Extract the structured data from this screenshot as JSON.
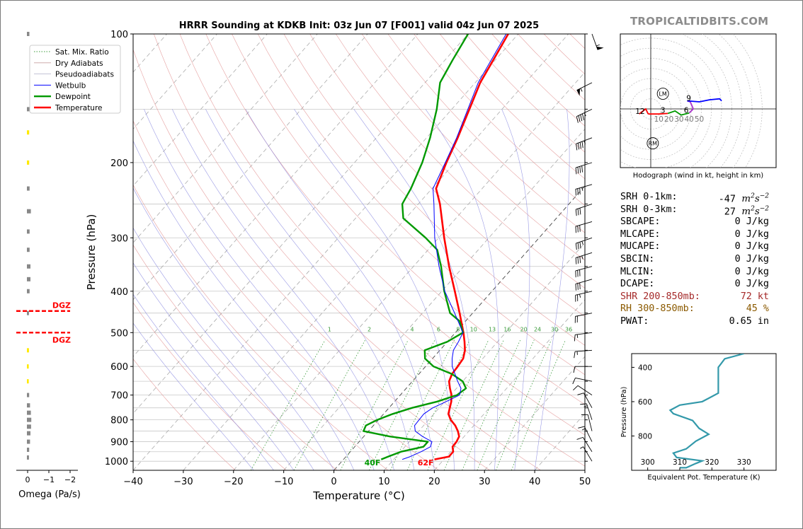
{
  "title": "HRRR Sounding at KDKB Init: 03z Jun 07 [F001] valid 04z Jun 07 2025",
  "brand": "TROPICALTIDBITS.COM",
  "colors": {
    "temperature": "#ff0000",
    "dewpoint": "#009900",
    "wetbulb": "#0000ff",
    "dry_adiabat": "#e08a8a",
    "pseudo_adiabat": "#8a8ae0",
    "mixing_ratio": "#3a9a3a",
    "isotherm": "#aaaaaa",
    "theta_e": "#3399aa",
    "hodo_0_3": "#ff0000",
    "hodo_3_6": "#009900",
    "hodo_6_9": "#aa33cc",
    "hodo_9_12": "#0000ff",
    "dgz": "#ff0000",
    "shr_text": "#a52a2a",
    "rh_text": "#8b5a00"
  },
  "legend": [
    "Sat. Mix. Ratio",
    "Dry Adiabats",
    "Pseudoadiabats",
    "Wetbulb",
    "Dewpoint",
    "Temperature"
  ],
  "chart_data": [
    {
      "type": "line",
      "name": "skew-t",
      "xlabel": "Temperature (°C)",
      "ylabel": "Pressure (hPa)",
      "xlim": [
        -40,
        50
      ],
      "ylim": [
        1050,
        100
      ],
      "y_scale": "log",
      "x_ticks": [
        "−40",
        "−30",
        "−20",
        "−10",
        "0",
        "10",
        "20",
        "30",
        "40",
        "50"
      ],
      "y_ticks": [
        "100",
        "200",
        "300",
        "400",
        "500",
        "600",
        "700",
        "800",
        "900",
        "1000"
      ],
      "isobars": [
        100,
        150,
        200,
        250,
        300,
        350,
        400,
        450,
        500,
        550,
        600,
        650,
        700,
        750,
        800,
        850,
        900,
        950,
        1000
      ],
      "mixing_ratio_labels": [
        "1",
        "2",
        "4",
        "6",
        "8",
        "10",
        "13",
        "16",
        "20",
        "24",
        "30",
        "36"
      ],
      "mixing_ratios": [
        1,
        2,
        4,
        6,
        8,
        10,
        13,
        16,
        20,
        24,
        30,
        36
      ],
      "series": [
        {
          "name": "Temperature",
          "p": [
            990,
            975,
            950,
            925,
            900,
            875,
            850,
            825,
            800,
            775,
            750,
            725,
            700,
            675,
            650,
            625,
            600,
            575,
            550,
            525,
            500,
            450,
            400,
            350,
            300,
            250,
            230,
            200,
            175,
            150,
            130,
            115,
            100
          ],
          "t": [
            18.1,
            20.5,
            20.5,
            19.5,
            19.4,
            19.0,
            17.8,
            16.3,
            14.4,
            12.9,
            12.1,
            11.3,
            10.2,
            8.7,
            7.3,
            6.6,
            6.4,
            6.1,
            5.0,
            3.4,
            1.6,
            -2.6,
            -7.4,
            -12.9,
            -18.9,
            -25.7,
            -29.2,
            -31.7,
            -33.8,
            -36.5,
            -39.0,
            -40.4,
            -42.0
          ]
        },
        {
          "name": "Dewpoint",
          "p": [
            990,
            975,
            950,
            925,
            900,
            875,
            850,
            825,
            800,
            775,
            750,
            725,
            700,
            675,
            650,
            625,
            600,
            575,
            550,
            525,
            500,
            470,
            450,
            400,
            350,
            320,
            300,
            270,
            250,
            230,
            200,
            175,
            150,
            130,
            115,
            100
          ],
          "t": [
            7.5,
            8.4,
            10.1,
            13.7,
            13.7,
            5.2,
            -1.0,
            -1.5,
            -0.2,
            1.8,
            4.6,
            8.5,
            11.3,
            11.9,
            10.0,
            6.6,
            1.6,
            -1.5,
            -3.0,
            0.0,
            1.5,
            -1.2,
            -4.5,
            -9.5,
            -14.5,
            -18.2,
            -22.6,
            -30.5,
            -33.2,
            -34.2,
            -36.5,
            -39.3,
            -43.0,
            -47.0,
            -48.5,
            -50.0
          ]
        },
        {
          "name": "Wetbulb",
          "p": [
            990,
            975,
            950,
            925,
            900,
            875,
            850,
            825,
            800,
            775,
            750,
            725,
            700,
            675,
            650,
            625,
            600,
            575,
            550,
            525,
            500,
            450,
            400,
            350,
            300,
            250,
            230,
            200,
            175,
            150,
            130,
            115,
            100
          ],
          "t": [
            11.7,
            12.8,
            14.1,
            15.1,
            14.5,
            11.7,
            9.3,
            8.2,
            8.1,
            8.0,
            8.7,
            10.3,
            11.8,
            10.9,
            9.0,
            7.2,
            5.3,
            3.9,
            2.7,
            2.2,
            1.5,
            -3.6,
            -9.4,
            -14.9,
            -20.8,
            -26.9,
            -29.8,
            -31.9,
            -34.0,
            -36.8,
            -39.4,
            -40.8,
            -42.4
          ]
        }
      ],
      "annotations": [
        "40F",
        "62F",
        "DGZ",
        "DGZ"
      ]
    },
    {
      "type": "line",
      "name": "hodograph",
      "title": "Hodograph (wind in kt, height in km)",
      "rings": [
        "10",
        "20",
        "30",
        "40",
        "50"
      ],
      "height_labels": [
        "12",
        "3",
        "6",
        "9"
      ],
      "markers": [
        "LM",
        "RM"
      ],
      "series": [
        {
          "name": "0-3 km",
          "u": [
            -2.5,
            -2,
            8,
            16.9
          ],
          "v": [
            -5,
            -5,
            -5,
            -4.5
          ]
        },
        {
          "name": "3-6 km",
          "u": [
            16.9,
            24,
            30,
            38
          ],
          "v": [
            -4.5,
            -2,
            -6,
            -4
          ]
        },
        {
          "name": "6-9 km",
          "u": [
            38,
            42,
            39,
            36
          ],
          "v": [
            -4,
            0,
            7,
            8
          ]
        },
        {
          "name": "9-12 km",
          "u": [
            36,
            48,
            58,
            68,
            70
          ],
          "v": [
            8,
            7,
            9,
            10,
            8
          ]
        },
        {
          "name": "above 12 km",
          "u": [
            -2.5,
            -5,
            -11.5
          ],
          "v": [
            -5,
            0,
            -5
          ]
        }
      ]
    },
    {
      "type": "line",
      "name": "theta-e",
      "xlabel": "Equivalent Pot. Temperature (K)",
      "ylabel": "Pressure (hPa)",
      "xlim": [
        295,
        340
      ],
      "ylim": [
        1000,
        320
      ],
      "x_ticks": [
        "300",
        "310",
        "320",
        "330"
      ],
      "y_ticks": [
        "400",
        "600",
        "800"
      ],
      "theta_e": [
        310,
        312,
        315,
        317,
        309,
        308,
        312,
        315,
        319,
        316,
        314,
        308,
        307,
        310,
        317,
        319,
        322,
        322,
        322,
        322,
        324,
        330
      ],
      "p": [
        985,
        985,
        960,
        945,
        925,
        900,
        875,
        830,
        790,
        755,
        710,
        670,
        650,
        620,
        600,
        580,
        550,
        500,
        450,
        400,
        350,
        320
      ]
    },
    {
      "type": "bar",
      "name": "omega",
      "xlabel": "Omega (Pa/s)",
      "x_ticks": [
        "0",
        "−1",
        "−2"
      ],
      "xlim": [
        0.3,
        -2.6
      ]
    }
  ],
  "winds": [
    {
      "p": 100,
      "u": -18,
      "v": 50
    },
    {
      "p": 130,
      "u": 50,
      "v": 25
    },
    {
      "p": 150,
      "u": 42,
      "v": 20
    },
    {
      "p": 175,
      "u": 40,
      "v": 15
    },
    {
      "p": 200,
      "u": 38,
      "v": 12
    },
    {
      "p": 225,
      "u": 35,
      "v": 10
    },
    {
      "p": 250,
      "u": 30,
      "v": 10
    },
    {
      "p": 275,
      "u": 28,
      "v": 8
    },
    {
      "p": 300,
      "u": 35,
      "v": 12
    },
    {
      "p": 325,
      "u": 32,
      "v": 10
    },
    {
      "p": 350,
      "u": 30,
      "v": 8
    },
    {
      "p": 375,
      "u": 28,
      "v": 8
    },
    {
      "p": 400,
      "u": 25,
      "v": 6
    },
    {
      "p": 450,
      "u": 20,
      "v": 4
    },
    {
      "p": 500,
      "u": 16,
      "v": 2
    },
    {
      "p": 550,
      "u": 14,
      "v": 1
    },
    {
      "p": 600,
      "u": 12,
      "v": 0
    },
    {
      "p": 650,
      "u": 10,
      "v": -2
    },
    {
      "p": 700,
      "u": 9,
      "v": -6
    },
    {
      "p": 750,
      "u": 5,
      "v": -9
    },
    {
      "p": 800,
      "u": 4,
      "v": -12
    },
    {
      "p": 850,
      "u": 3,
      "v": -12
    },
    {
      "p": 900,
      "u": 6,
      "v": -12
    },
    {
      "p": 950,
      "u": 5,
      "v": -8
    },
    {
      "p": 1000,
      "u": 3,
      "v": -5
    }
  ],
  "params": [
    {
      "label": "SRH 0-1km:",
      "value": "-47",
      "unit": "m2s-2"
    },
    {
      "label": "SRH 0-3km:",
      "value": "27",
      "unit": "m2s-2"
    },
    {
      "label": "SBCAPE:",
      "value": "0 J/kg"
    },
    {
      "label": "MLCAPE:",
      "value": "0 J/kg"
    },
    {
      "label": "MUCAPE:",
      "value": "0 J/kg"
    },
    {
      "label": "SBCIN:",
      "value": "0 J/kg"
    },
    {
      "label": "MLCIN:",
      "value": "0 J/kg"
    },
    {
      "label": "DCAPE:",
      "value": "0 J/kg"
    },
    {
      "label": "SHR 200-850mb:",
      "value": "72 kt",
      "color": "shr_text"
    },
    {
      "label": "RH 300-850mb:",
      "value": "45 %",
      "color": "rh_text"
    },
    {
      "label": "PWAT:",
      "value": "0.65 in"
    }
  ]
}
